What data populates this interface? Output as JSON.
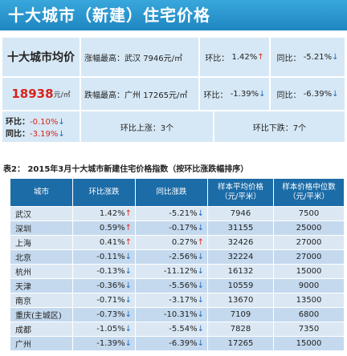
{
  "banner": {
    "title": "十大城市（新建）住宅价格"
  },
  "summary": {
    "avg_label": "十大城市均价",
    "avg_value": "18938",
    "avg_unit": "元/㎡",
    "avg_mom_label": "环比：",
    "avg_mom_value": "-0.10%",
    "avg_yoy_label": "同比：",
    "avg_yoy_value": "-3.19%",
    "highest": {
      "label": "涨幅最高：",
      "city": "武汉",
      "price": "7946元/㎡",
      "mom_label": "环比：",
      "mom_value": "1.42%",
      "yoy_label": "同比：",
      "yoy_value": "-5.21%"
    },
    "lowest": {
      "label": "跌幅最高：",
      "city": "广州",
      "price": "17265元/㎡",
      "mom_label": "环比：",
      "mom_value": "-1.39%",
      "yoy_label": "同比：",
      "yoy_value": "-6.39%"
    },
    "mom_up": "环比上涨：3个",
    "mom_down": "环比下跌：7个"
  },
  "table": {
    "caption": "表2：  2015年3月十大城市新建住宅价格指数（按环比涨跌幅排序）",
    "headers": [
      "城市",
      "环比涨跌",
      "同比涨跌",
      "样本平均价格（元/平米）",
      "样本价格中位数（元/平米）"
    ],
    "header_lines": [
      [
        "城市"
      ],
      [
        "环比涨跌"
      ],
      [
        "同比涨跌"
      ],
      [
        "样本平均价格",
        "（元/平米）"
      ],
      [
        "样本价格中位数",
        "（元/平米）"
      ]
    ],
    "rows": [
      {
        "city": "武汉",
        "mom": "1.42%",
        "mom_dir": "up",
        "yoy": "-5.21%",
        "yoy_dir": "down",
        "avg": "7946",
        "median": "7500"
      },
      {
        "city": "深圳",
        "mom": "0.59%",
        "mom_dir": "up",
        "yoy": "-0.17%",
        "yoy_dir": "down",
        "avg": "31155",
        "median": "25000"
      },
      {
        "city": "上海",
        "mom": "0.41%",
        "mom_dir": "up",
        "yoy": "0.27%",
        "yoy_dir": "up",
        "avg": "32426",
        "median": "27000"
      },
      {
        "city": "北京",
        "mom": "-0.11%",
        "mom_dir": "down",
        "yoy": "-2.56%",
        "yoy_dir": "down",
        "avg": "32224",
        "median": "27000"
      },
      {
        "city": "杭州",
        "mom": "-0.13%",
        "mom_dir": "down",
        "yoy": "-11.12%",
        "yoy_dir": "down",
        "avg": "16132",
        "median": "15000"
      },
      {
        "city": "天津",
        "mom": "-0.36%",
        "mom_dir": "down",
        "yoy": "-5.56%",
        "yoy_dir": "down",
        "avg": "10559",
        "median": "9000"
      },
      {
        "city": "南京",
        "mom": "-0.71%",
        "mom_dir": "down",
        "yoy": "-3.17%",
        "yoy_dir": "down",
        "avg": "13670",
        "median": "13500"
      },
      {
        "city": "重庆(主城区)",
        "mom": "-0.73%",
        "mom_dir": "down",
        "yoy": "-10.31%",
        "yoy_dir": "down",
        "avg": "7109",
        "median": "6800"
      },
      {
        "city": "成都",
        "mom": "-1.05%",
        "mom_dir": "down",
        "yoy": "-5.54%",
        "yoy_dir": "down",
        "avg": "7828",
        "median": "7350"
      },
      {
        "city": "广州",
        "mom": "-1.39%",
        "mom_dir": "down",
        "yoy": "-6.39%",
        "yoy_dir": "down",
        "avg": "17265",
        "median": "15000"
      }
    ]
  },
  "arrows": {
    "up": "↑",
    "down": "↓"
  },
  "colors": {
    "banner": "#1f86c0",
    "header": "#1c6ca7",
    "up": "#e0281c",
    "down": "#1b6fc4",
    "cell": "#d6e8f6"
  }
}
